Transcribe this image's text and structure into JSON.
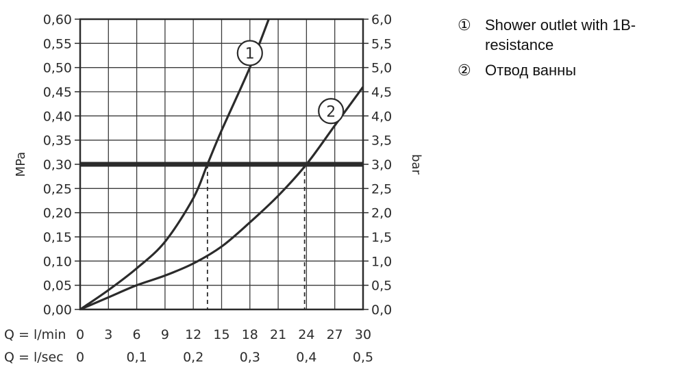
{
  "chart_data": {
    "type": "line",
    "y_left": {
      "label": "MPa",
      "range": [
        0,
        0.6
      ],
      "ticks": [
        "0,00",
        "0,05",
        "0,10",
        "0,15",
        "0,20",
        "0,25",
        "0,30",
        "0,35",
        "0,40",
        "0,45",
        "0,50",
        "0,55",
        "0,60"
      ]
    },
    "y_right": {
      "label": "bar",
      "range": [
        0,
        6
      ],
      "ticks": [
        "0,0",
        "0,5",
        "1,0",
        "1,5",
        "2,0",
        "2,5",
        "3,0",
        "3,5",
        "4,0",
        "4,5",
        "5,0",
        "5,5",
        "6,0"
      ]
    },
    "x_primary": {
      "label": "Q = l/min",
      "range": [
        0,
        30
      ],
      "ticks": [
        "0",
        "3",
        "6",
        "9",
        "12",
        "15",
        "18",
        "21",
        "24",
        "27",
        "30"
      ]
    },
    "x_secondary": {
      "label": "Q = l/sec",
      "ticks": [
        {
          "value": 0,
          "label": "0"
        },
        {
          "value": 0.1,
          "label": "0,1"
        },
        {
          "value": 0.2,
          "label": "0,2"
        },
        {
          "value": 0.3,
          "label": "0,3"
        },
        {
          "value": 0.4,
          "label": "0,4"
        },
        {
          "value": 0.5,
          "label": "0,5"
        }
      ]
    },
    "grid": true,
    "reference_line": {
      "y": 0.3,
      "colors": {
        "line": "#2b2b2b"
      }
    },
    "series": [
      {
        "marker": "1",
        "x": [
          0,
          3,
          6,
          9,
          12,
          13.5,
          15,
          18,
          20
        ],
        "y": [
          0,
          0.04,
          0.085,
          0.14,
          0.23,
          0.3,
          0.37,
          0.5,
          0.6
        ],
        "intersection_x": 13.5,
        "label_at": {
          "x": 18,
          "y": 0.53
        }
      },
      {
        "marker": "2",
        "x": [
          0,
          3,
          6,
          9,
          12,
          15,
          18,
          21,
          24,
          27,
          30
        ],
        "y": [
          0,
          0.025,
          0.05,
          0.07,
          0.095,
          0.13,
          0.18,
          0.235,
          0.3,
          0.38,
          0.46
        ],
        "intersection_x": 23.8,
        "label_at": {
          "x": 26.6,
          "y": 0.41
        }
      }
    ]
  },
  "legend": [
    {
      "marker": "①",
      "label": "Shower outlet with 1B-resistance"
    },
    {
      "marker": "②",
      "label": "Отвод ванны"
    }
  ],
  "colors": {
    "line": "#2b2b2b",
    "grid": "#3a3a3a",
    "text": "#2b2b2b"
  }
}
